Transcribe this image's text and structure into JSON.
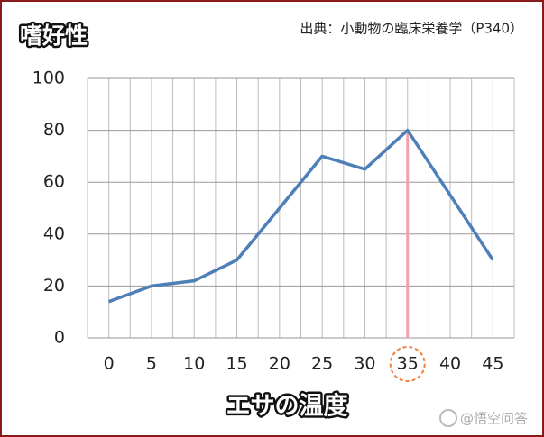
{
  "chart_data": {
    "type": "line",
    "title": "嗜好性",
    "source": "出典：小動物の臨床栄養学（P340）",
    "x_label": "エサの温度",
    "watermark": "@悟空问答",
    "categories": [
      "0",
      "5",
      "10",
      "15",
      "20",
      "25",
      "30",
      "35",
      "40",
      "45"
    ],
    "values": [
      14,
      20,
      22,
      30,
      50,
      70,
      65,
      80,
      55,
      30
    ],
    "color": "#4f7fb8",
    "highlight_color": "#f4a0a8",
    "ylim": [
      0,
      100
    ],
    "yticks": [
      0,
      20,
      40,
      60,
      80,
      100
    ],
    "grid": true
  }
}
